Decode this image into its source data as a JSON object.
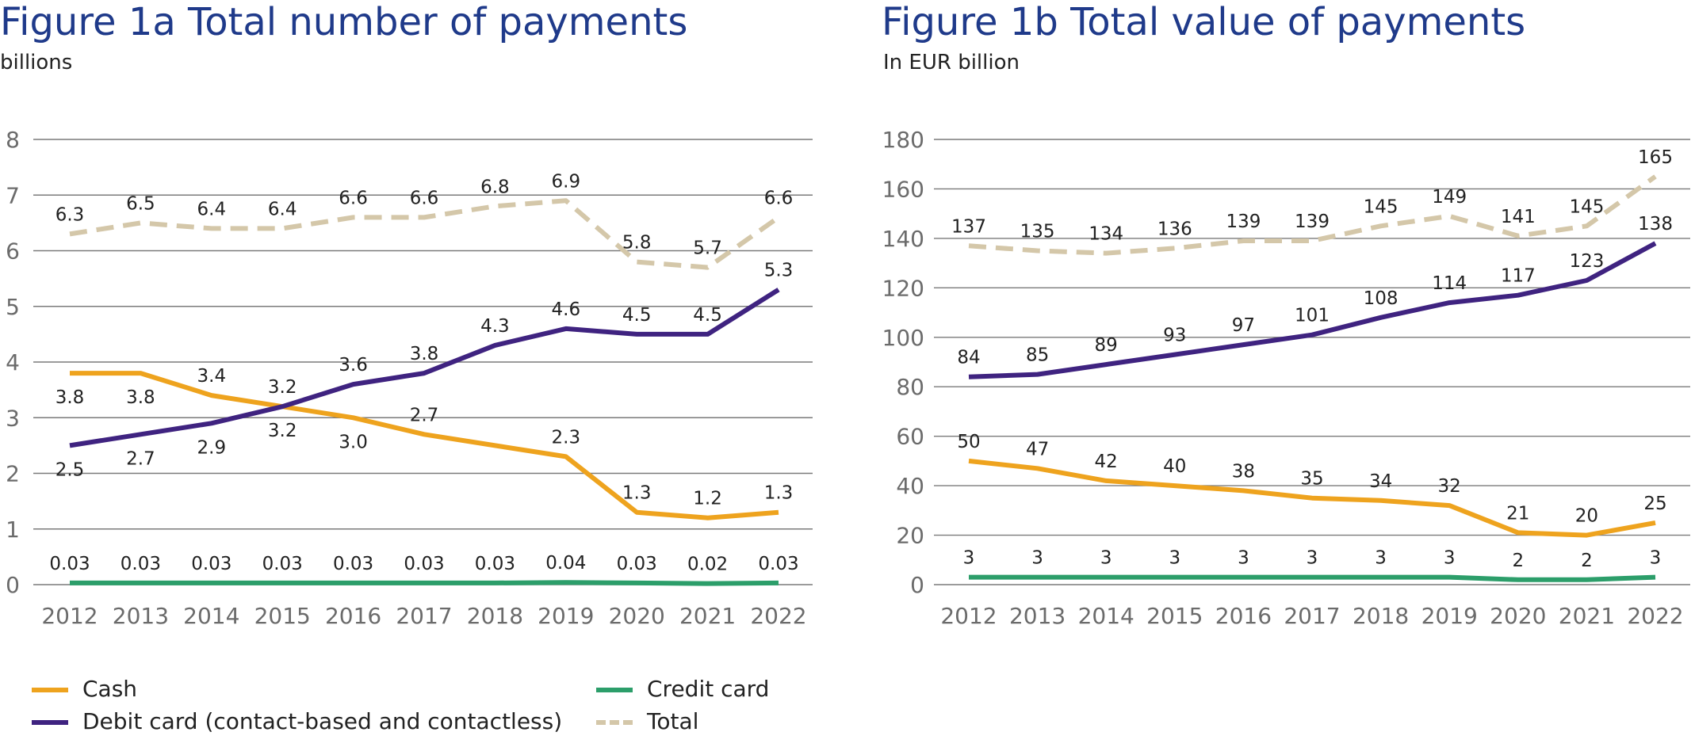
{
  "colors": {
    "cash": "#eea31e",
    "debit": "#3f2380",
    "credit": "#2c9e6a",
    "total": "#d4c7a9",
    "grid": "#7a7a7a",
    "title": "#1f3a8a"
  },
  "chart_data": [
    {
      "type": "line",
      "title": "Figure 1a  Total number of payments",
      "subtitle": "billions",
      "categories": [
        "2012",
        "2013",
        "2014",
        "2015",
        "2016",
        "2017",
        "2018",
        "2019",
        "2020",
        "2021",
        "2022"
      ],
      "ylim": [
        0,
        8
      ],
      "yticks": [
        "0",
        "1",
        "2",
        "3",
        "4",
        "5",
        "6",
        "7",
        "8"
      ],
      "grid": true,
      "series": [
        {
          "name": "Cash",
          "key": "cash",
          "values": [
            3.8,
            3.8,
            3.4,
            3.2,
            3.0,
            2.7,
            2.5,
            2.3,
            1.3,
            1.2,
            1.3
          ],
          "labels": [
            "3.8",
            "3.8",
            "3.4",
            "3.2",
            "3.0",
            "2.7",
            "",
            "2.3",
            "1.3",
            "1.2",
            "1.3"
          ]
        },
        {
          "name": "Debit card (contact-based and contactless)",
          "key": "debit",
          "values": [
            2.5,
            2.7,
            2.9,
            3.2,
            3.6,
            3.8,
            4.3,
            4.6,
            4.5,
            4.5,
            5.3
          ],
          "labels": [
            "2.5",
            "2.7",
            "2.9",
            "3.2",
            "3.6",
            "3.8",
            "4.3",
            "4.6",
            "4.5",
            "4.5",
            "5.3"
          ]
        },
        {
          "name": "Credit card",
          "key": "credit",
          "values": [
            0.03,
            0.03,
            0.03,
            0.03,
            0.03,
            0.03,
            0.03,
            0.04,
            0.03,
            0.02,
            0.03
          ],
          "labels": [
            "0.03",
            "0.03",
            "0.03",
            "0.03",
            "0.03",
            "0.03",
            "0.03",
            "0.04",
            "0.03",
            "0.02",
            "0.03"
          ]
        },
        {
          "name": "Total",
          "key": "total",
          "values": [
            6.3,
            6.5,
            6.4,
            6.4,
            6.6,
            6.6,
            6.8,
            6.9,
            5.8,
            5.7,
            6.6
          ],
          "labels": [
            "6.3",
            "6.5",
            "6.4",
            "6.4",
            "6.6",
            "6.6",
            "6.8",
            "6.9",
            "5.8",
            "5.7",
            "6.6"
          ]
        }
      ]
    },
    {
      "type": "line",
      "title": "Figure 1b  Total value of payments",
      "subtitle": "In EUR billion",
      "categories": [
        "2012",
        "2013",
        "2014",
        "2015",
        "2016",
        "2017",
        "2018",
        "2019",
        "2020",
        "2021",
        "2022"
      ],
      "ylim": [
        0,
        180
      ],
      "yticks": [
        "0",
        "20",
        "40",
        "60",
        "80",
        "100",
        "120",
        "140",
        "160",
        "180"
      ],
      "grid": true,
      "series": [
        {
          "name": "Cash",
          "key": "cash",
          "values": [
            50,
            47,
            42,
            40,
            38,
            35,
            34,
            32,
            21,
            20,
            25
          ],
          "labels": [
            "50",
            "47",
            "42",
            "40",
            "38",
            "35",
            "34",
            "32",
            "21",
            "20",
            "25"
          ]
        },
        {
          "name": "Debit card (contact-based and contactless)",
          "key": "debit",
          "values": [
            84,
            85,
            89,
            93,
            97,
            101,
            108,
            114,
            117,
            123,
            138
          ],
          "labels": [
            "84",
            "85",
            "89",
            "93",
            "97",
            "101",
            "108",
            "114",
            "117",
            "123",
            "138"
          ]
        },
        {
          "name": "Credit card",
          "key": "credit",
          "values": [
            3,
            3,
            3,
            3,
            3,
            3,
            3,
            3,
            2,
            2,
            3
          ],
          "labels": [
            "3",
            "3",
            "3",
            "3",
            "3",
            "3",
            "3",
            "3",
            "2",
            "2",
            "3"
          ]
        },
        {
          "name": "Total",
          "key": "total",
          "values": [
            137,
            135,
            134,
            136,
            139,
            139,
            145,
            149,
            141,
            145,
            165
          ],
          "labels": [
            "137",
            "135",
            "134",
            "136",
            "139",
            "139",
            "145",
            "149",
            "141",
            "145",
            "165"
          ]
        }
      ]
    }
  ],
  "legend": {
    "cash": "Cash",
    "debit": "Debit card (contact-based and contactless)",
    "credit": "Credit card",
    "total": "Total"
  }
}
